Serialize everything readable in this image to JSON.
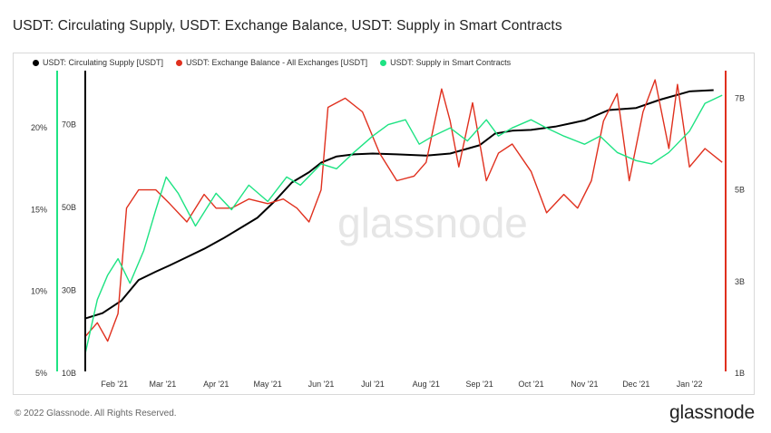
{
  "title": "USDT: Circulating Supply, USDT: Exchange Balance, USDT: Supply in Smart Contracts",
  "footer": "© 2022 Glassnode. All Rights Reserved.",
  "brand": "glassnode",
  "watermark": "glassnode",
  "chart_data": {
    "type": "line",
    "x_ticks": [
      "Feb '21",
      "Mar '21",
      "Apr '21",
      "May '21",
      "Jun '21",
      "Jul '21",
      "Aug '21",
      "Sep '21",
      "Oct '21",
      "Nov '21",
      "Dec '21",
      "Jan '22"
    ],
    "left_pct_axis": {
      "ticks": [
        "5%",
        "10%",
        "15%",
        "20%"
      ],
      "range": [
        5,
        23.5
      ]
    },
    "left_supply_axis": {
      "ticks": [
        "10B",
        "30B",
        "50B",
        "70B"
      ],
      "range": [
        10,
        83
      ]
    },
    "right_axis": {
      "ticks": [
        "1B",
        "3B",
        "5B",
        "7B"
      ],
      "range": [
        1,
        7.6
      ]
    },
    "series": [
      {
        "name": "USDT: Circulating Supply [USDT]",
        "color": "#000000",
        "axis": "left_supply",
        "x": [
          "2021-01-15",
          "2021-01-25",
          "2021-02-05",
          "2021-02-15",
          "2021-02-25",
          "2021-03-05",
          "2021-03-15",
          "2021-03-25",
          "2021-04-05",
          "2021-04-15",
          "2021-04-25",
          "2021-05-05",
          "2021-05-15",
          "2021-05-25",
          "2021-06-01",
          "2021-06-10",
          "2021-06-20",
          "2021-07-01",
          "2021-07-15",
          "2021-08-01",
          "2021-08-15",
          "2021-09-01",
          "2021-09-10",
          "2021-09-20",
          "2021-10-01",
          "2021-10-15",
          "2021-11-01",
          "2021-11-15",
          "2021-12-01",
          "2021-12-15",
          "2022-01-01",
          "2022-01-15"
        ],
        "values": [
          23.2,
          24.5,
          27.5,
          32.5,
          34.5,
          36.0,
          38.0,
          40.0,
          42.5,
          45.0,
          47.5,
          51.5,
          56.0,
          58.5,
          60.8,
          62.3,
          62.8,
          63.0,
          62.8,
          62.5,
          63.0,
          65.0,
          67.8,
          68.5,
          68.7,
          69.5,
          71.0,
          73.5,
          74.0,
          76.0,
          78.0,
          78.3
        ]
      },
      {
        "name": "USDT: Exchange Balance - All Exchanges [USDT]",
        "color": "#e0301e",
        "axis": "right",
        "x": [
          "2021-01-15",
          "2021-01-22",
          "2021-01-28",
          "2021-02-03",
          "2021-02-08",
          "2021-02-15",
          "2021-02-25",
          "2021-03-05",
          "2021-03-15",
          "2021-03-25",
          "2021-04-01",
          "2021-04-10",
          "2021-04-20",
          "2021-05-01",
          "2021-05-10",
          "2021-05-18",
          "2021-05-25",
          "2021-06-01",
          "2021-06-05",
          "2021-06-15",
          "2021-06-25",
          "2021-07-05",
          "2021-07-15",
          "2021-07-25",
          "2021-08-01",
          "2021-08-10",
          "2021-08-15",
          "2021-08-20",
          "2021-08-28",
          "2021-09-05",
          "2021-09-12",
          "2021-09-20",
          "2021-10-01",
          "2021-10-10",
          "2021-10-20",
          "2021-10-28",
          "2021-11-05",
          "2021-11-12",
          "2021-11-20",
          "2021-11-27",
          "2021-12-05",
          "2021-12-12",
          "2021-12-20",
          "2021-12-25",
          "2022-01-01",
          "2022-01-10",
          "2022-01-20"
        ],
        "values": [
          1.8,
          2.1,
          1.7,
          2.3,
          4.6,
          5.0,
          5.0,
          4.7,
          4.3,
          4.9,
          4.6,
          4.6,
          4.8,
          4.7,
          4.8,
          4.6,
          4.3,
          5.0,
          6.8,
          7.0,
          6.7,
          5.8,
          5.2,
          5.3,
          5.6,
          7.2,
          6.5,
          5.5,
          6.9,
          5.2,
          5.8,
          6.0,
          5.4,
          4.5,
          4.9,
          4.6,
          5.2,
          6.5,
          7.1,
          5.2,
          6.7,
          7.4,
          5.9,
          7.3,
          5.5,
          5.9,
          5.6
        ]
      },
      {
        "name": "USDT: Supply in Smart Contracts",
        "color": "#1ee383",
        "axis": "left_pct",
        "x": [
          "2021-01-15",
          "2021-01-22",
          "2021-01-28",
          "2021-02-03",
          "2021-02-10",
          "2021-02-18",
          "2021-02-25",
          "2021-03-03",
          "2021-03-10",
          "2021-03-20",
          "2021-04-01",
          "2021-04-10",
          "2021-04-20",
          "2021-05-01",
          "2021-05-12",
          "2021-05-20",
          "2021-06-01",
          "2021-06-10",
          "2021-06-20",
          "2021-07-01",
          "2021-07-10",
          "2021-07-20",
          "2021-07-28",
          "2021-08-05",
          "2021-08-15",
          "2021-08-25",
          "2021-09-05",
          "2021-09-12",
          "2021-09-20",
          "2021-10-01",
          "2021-10-10",
          "2021-10-20",
          "2021-11-01",
          "2021-11-10",
          "2021-11-20",
          "2021-12-01",
          "2021-12-10",
          "2021-12-20",
          "2022-01-01",
          "2022-01-10",
          "2022-01-20"
        ],
        "values": [
          6.2,
          9.5,
          11.0,
          12.0,
          10.5,
          12.5,
          15.0,
          17.0,
          16.0,
          14.0,
          16.0,
          15.0,
          16.5,
          15.5,
          17.0,
          16.5,
          17.8,
          17.5,
          18.5,
          19.5,
          20.2,
          20.5,
          19.0,
          19.5,
          20.0,
          19.2,
          20.5,
          19.5,
          20.0,
          20.5,
          20.0,
          19.5,
          19.0,
          19.5,
          18.5,
          18.0,
          17.8,
          18.5,
          19.8,
          21.5,
          22.0
        ]
      }
    ]
  }
}
